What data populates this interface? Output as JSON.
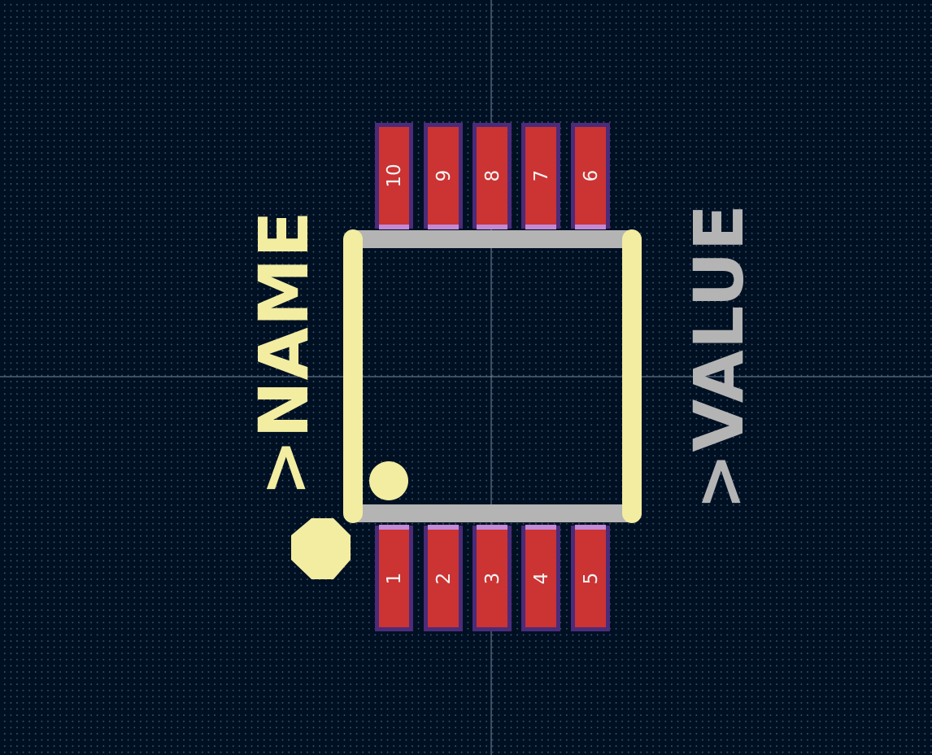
{
  "footprint": {
    "reference_text": ">NAME",
    "value_text": ">VALUE",
    "pins_top": [
      "10",
      "9",
      "8",
      "7",
      "6"
    ],
    "pins_bottom": [
      "1",
      "2",
      "3",
      "4",
      "5"
    ]
  },
  "colors": {
    "background": "#001023",
    "grid_dots": "#7890a5",
    "crosshair": "#8fa6bf",
    "pad_copper": "#cc3333",
    "pad_mask": "#4b2b7a",
    "pad_paste": "#c38ad6",
    "silkscreen": "#f2eda1",
    "fab_outline": "#b4b4b4",
    "pad_text": "#f4f4f4"
  }
}
